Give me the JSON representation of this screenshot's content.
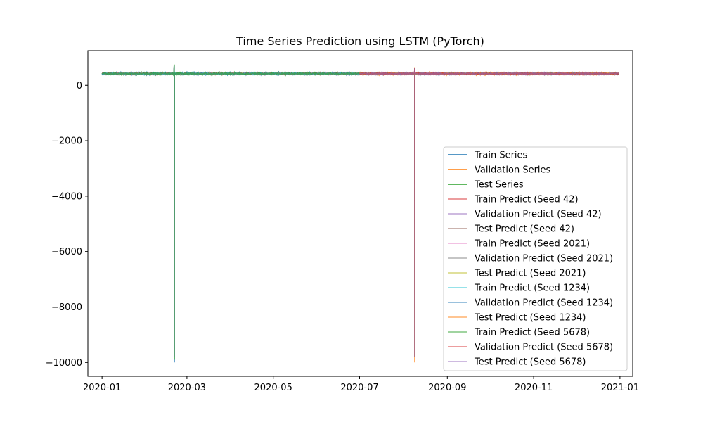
{
  "chart_data": {
    "type": "line",
    "title": "Time Series Prediction using LSTM (PyTorch)",
    "xlabel": "",
    "ylabel": "",
    "xlim": [
      "2019-12-22",
      "2021-01-10"
    ],
    "ylim": [
      -10500,
      1250
    ],
    "x_ticks": [
      "2020-01",
      "2020-03",
      "2020-05",
      "2020-07",
      "2020-09",
      "2020-11",
      "2021-01"
    ],
    "y_ticks": [
      0,
      -2000,
      -4000,
      -6000,
      -8000,
      -10000
    ],
    "y_tick_labels": [
      "0",
      "−2000",
      "−4000",
      "−6000",
      "−8000",
      "−10000"
    ],
    "grid": false,
    "legend_position": "lower-right",
    "series": [
      {
        "name": "Train Series",
        "color": "#1f77b4",
        "alpha": 1.0,
        "range": [
          "2020-01-01",
          "2020-07-01"
        ],
        "baseline": 420,
        "noise": 30,
        "spike": {
          "date": "2020-02-21",
          "min": -10000,
          "max": 700
        }
      },
      {
        "name": "Validation Series",
        "color": "#ff7f0e",
        "alpha": 1.0,
        "range": [
          "2020-07-01",
          "2020-12-31"
        ],
        "baseline": 420,
        "noise": 30,
        "spike": {
          "date": "2020-08-09",
          "min": -10000,
          "max": 650
        }
      },
      {
        "name": "Test Series",
        "color": "#2ca02c",
        "alpha": 1.0,
        "range": [
          "2020-01-01",
          "2020-07-01"
        ],
        "baseline": 420,
        "noise": 30,
        "spike": {
          "date": "2020-02-21",
          "min": -9900,
          "max": 750
        }
      },
      {
        "name": "Train Predict (Seed 42)",
        "color": "#d62728",
        "alpha": 0.6,
        "range": [
          "2020-01-01",
          "2020-07-01"
        ],
        "baseline": 420,
        "noise": 25,
        "spike": {
          "date": "2020-02-21",
          "min": -9800,
          "max": 700
        }
      },
      {
        "name": "Validation Predict (Seed 42)",
        "color": "#9467bd",
        "alpha": 0.6,
        "range": [
          "2020-07-01",
          "2020-12-31"
        ],
        "baseline": 420,
        "noise": 25,
        "spike": {
          "date": "2020-08-09",
          "min": -9800,
          "max": 620
        }
      },
      {
        "name": "Test Predict (Seed 42)",
        "color": "#8c564b",
        "alpha": 0.6,
        "range": [
          "2020-07-01",
          "2020-12-31"
        ],
        "baseline": 420,
        "noise": 25,
        "spike": {
          "date": "2020-08-09",
          "min": -9800,
          "max": 620
        }
      },
      {
        "name": "Train Predict (Seed 2021)",
        "color": "#e377c2",
        "alpha": 0.6,
        "range": [
          "2020-01-01",
          "2020-07-01"
        ],
        "baseline": 420,
        "noise": 25,
        "spike": {
          "date": "2020-02-21",
          "min": -9800,
          "max": 700
        }
      },
      {
        "name": "Validation Predict (Seed 2021)",
        "color": "#7f7f7f",
        "alpha": 0.6,
        "range": [
          "2020-07-01",
          "2020-12-31"
        ],
        "baseline": 420,
        "noise": 25,
        "spike": {
          "date": "2020-08-09",
          "min": -9800,
          "max": 620
        }
      },
      {
        "name": "Test Predict (Seed 2021)",
        "color": "#bcbd22",
        "alpha": 0.6,
        "range": [
          "2020-07-01",
          "2020-12-31"
        ],
        "baseline": 420,
        "noise": 25,
        "spike": {
          "date": "2020-08-09",
          "min": -9800,
          "max": 620
        }
      },
      {
        "name": "Train Predict (Seed 1234)",
        "color": "#17becf",
        "alpha": 0.6,
        "range": [
          "2020-01-01",
          "2020-07-01"
        ],
        "baseline": 420,
        "noise": 25,
        "spike": {
          "date": "2020-02-21",
          "min": -9800,
          "max": 700
        }
      },
      {
        "name": "Validation Predict (Seed 1234)",
        "color": "#1f77b4",
        "alpha": 0.6,
        "range": [
          "2020-07-01",
          "2020-12-31"
        ],
        "baseline": 420,
        "noise": 25,
        "spike": {
          "date": "2020-08-09",
          "min": -9800,
          "max": 620
        }
      },
      {
        "name": "Test Predict (Seed 1234)",
        "color": "#ff7f0e",
        "alpha": 0.6,
        "range": [
          "2020-07-01",
          "2020-12-31"
        ],
        "baseline": 420,
        "noise": 25,
        "spike": {
          "date": "2020-08-09",
          "min": -9800,
          "max": 620
        }
      },
      {
        "name": "Train Predict (Seed 5678)",
        "color": "#2ca02c",
        "alpha": 0.6,
        "range": [
          "2020-01-01",
          "2020-07-01"
        ],
        "baseline": 420,
        "noise": 25,
        "spike": {
          "date": "2020-02-21",
          "min": -9800,
          "max": 720
        }
      },
      {
        "name": "Validation Predict (Seed 5678)",
        "color": "#d62728",
        "alpha": 0.6,
        "range": [
          "2020-07-01",
          "2020-12-31"
        ],
        "baseline": 420,
        "noise": 25,
        "spike": {
          "date": "2020-08-09",
          "min": -9800,
          "max": 640
        }
      },
      {
        "name": "Test Predict (Seed 5678)",
        "color": "#9467bd",
        "alpha": 0.6,
        "range": [
          "2020-07-01",
          "2020-12-31"
        ],
        "baseline": 420,
        "noise": 25,
        "spike": {
          "date": "2020-08-09",
          "min": -9800,
          "max": 620
        }
      }
    ]
  }
}
